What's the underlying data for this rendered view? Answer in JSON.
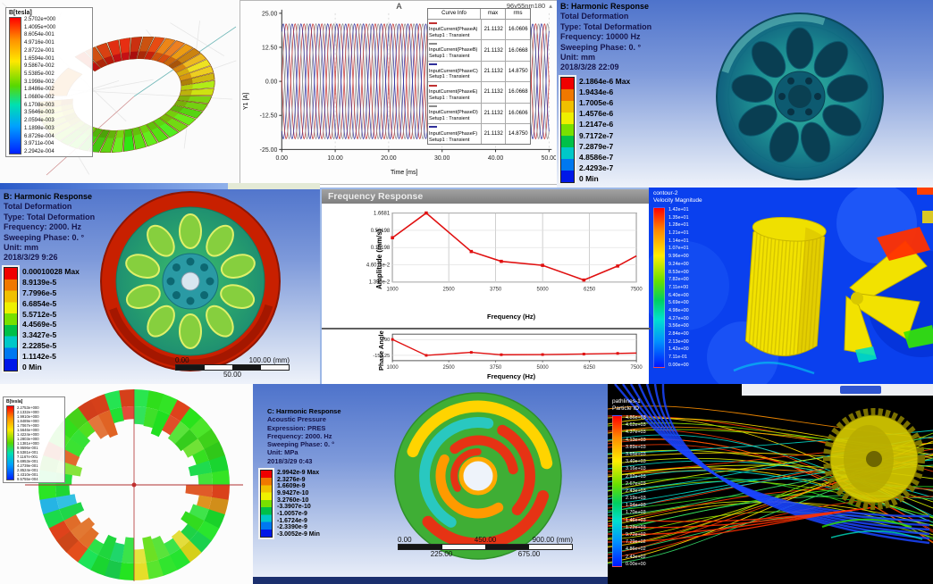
{
  "colors": {
    "ansys_bg_top": "#4e73cb",
    "curve_red": "#c03030",
    "curve_gray": "#8a8a8a",
    "curve_navy": "#30309a",
    "marker_red": "#e01010",
    "fluent_bg_blue": "#0a40ee",
    "gear_yellow": "#f2e200"
  },
  "panels": {
    "maxwell_torus": {
      "legend_title": "B[tesla]",
      "values": [
        "2.5702e+000",
        "1.4095e+000",
        "8.6054e-001",
        "4.9716e-001",
        "2.8722e-001",
        "1.6594e-001",
        "9.5867e-002",
        "5.5385e-002",
        "3.1998e-002",
        "1.8486e-002",
        "1.0680e-002",
        "6.1708e-003",
        "3.5646e-003",
        "2.0594e-003",
        "1.1898e-003",
        "6.8726e-004",
        "3.9711e-004",
        "2.2942e-004"
      ]
    },
    "transient_plot": {
      "window_title": "96v55nm180"
    },
    "harmonic_wheel_10000": {
      "header_lines": [
        "B: Harmonic Response",
        "Total Deformation",
        "Type: Total Deformation",
        "Frequency: 10000 Hz",
        "Sweeping Phase: 0. °",
        "Unit: mm",
        "2018/3/28 22:09"
      ],
      "scale": [
        "2.1864e-6 Max",
        "1.9434e-6",
        "1.7005e-6",
        "1.4576e-6",
        "1.2147e-6",
        "9.7172e-7",
        "7.2879e-7",
        "4.8586e-7",
        "2.4293e-7",
        "0 Min"
      ]
    },
    "harmonic_wheel_2000": {
      "header_lines": [
        "B: Harmonic Response",
        "Total Deformation",
        "Type: Total Deformation",
        "Frequency: 2000. Hz",
        "Sweeping Phase: 0. °",
        "Unit: mm",
        "2018/3/29 9:26"
      ],
      "scale": [
        "0.00010028 Max",
        "8.9139e-5",
        "7.7996e-5",
        "6.6854e-5",
        "5.5712e-5",
        "4.4569e-5",
        "3.3427e-5",
        "2.2285e-5",
        "1.1142e-5",
        "0 Min"
      ],
      "ruler": {
        "top_left": "0.00",
        "top_right": "100.00 (mm)",
        "bottom_center": "50.00"
      }
    },
    "frequency_response": {
      "window_title": "Frequency Response"
    },
    "cfd_velocity": {
      "legend_header_line1": "contour-2",
      "legend_header_line2": "Velocity Magnitude",
      "values": [
        "1.42e+01",
        "1.35e+01",
        "1.28e+01",
        "1.21e+01",
        "1.14e+01",
        "1.07e+01",
        "9.96e+00",
        "9.24e+00",
        "8.53e+00",
        "7.82e+00",
        "7.11e+00",
        "6.40e+00",
        "5.69e+00",
        "4.98e+00",
        "4.27e+00",
        "3.56e+00",
        "2.84e+00",
        "2.13e+00",
        "1.42e+00",
        "7.11e-01",
        "0.00e+00"
      ]
    },
    "maxwell_ring": {
      "legend_title": "B[tesla]",
      "values": [
        "2.2753e+000",
        "2.1332e+000",
        "1.9910e+000",
        "1.8489e+000",
        "1.7067e+000",
        "1.5646e+000",
        "1.4224e+000",
        "1.2803e+000",
        "1.1381e+000",
        "9.9596e-001",
        "8.5381e-001",
        "7.1167e-001",
        "5.6953e-001",
        "4.2739e-001",
        "2.8524e-001",
        "1.4310e-001",
        "9.5755e-004"
      ]
    },
    "acoustic_disk": {
      "header_lines": [
        "C: Harmonic Response",
        "Acoustic Pressure",
        "Expression: PRES",
        "Frequency: 2000. Hz",
        "Sweeping Phase: 0. °",
        "Unit: MPa",
        "2018/3/29 0:43"
      ],
      "scale": [
        "2.9942e-9 Max",
        "2.3276e-9",
        "1.6609e-9",
        "9.9427e-10",
        "3.2760e-10",
        "-3.3907e-10",
        "-1.0057e-9",
        "-1.6724e-9",
        "-2.3390e-9",
        "-3.0052e-9 Min"
      ],
      "ruler": {
        "top": [
          "0.00",
          "450.00",
          "900.00 (mm)"
        ],
        "bottom": [
          "225.00",
          "675.00"
        ]
      }
    },
    "cfd_pathlines": {
      "legend_header_line1": "pathlines-1",
      "legend_header_line2": "Particle ID",
      "values": [
        "4.86e+03",
        "4.62e+03",
        "4.37e+03",
        "4.13e+03",
        "3.89e+03",
        "3.65e+03",
        "3.40e+03",
        "3.16e+03",
        "2.92e+03",
        "2.67e+03",
        "2.43e+03",
        "2.19e+03",
        "1.94e+03",
        "1.70e+03",
        "1.46e+03",
        "1.22e+03",
        "9.72e+02",
        "7.29e+02",
        "4.86e+02",
        "2.43e+02",
        "0.00e+00"
      ]
    }
  },
  "chart_data": [
    {
      "type": "line",
      "title": "A",
      "window_title": "96v55nm180",
      "xlabel": "Time [ms]",
      "ylabel": "Y1 [A]",
      "x_range": [
        0,
        50
      ],
      "y_range": [
        -25,
        25
      ],
      "xticks": [
        "0.00",
        "10.00",
        "20.00",
        "30.00",
        "40.00",
        "50.00"
      ],
      "yticks": [
        "25.00",
        "12.50",
        "0.00",
        "-12.50",
        "-25.00"
      ],
      "waveform": "sine",
      "amplitude": 21.1132,
      "period_ms": 3.333,
      "legend_header": "Curve Info",
      "col_headers": [
        "max",
        "rms"
      ],
      "series": [
        {
          "name": "InputCurrent(PhaseA)",
          "setup": "Setup1 : Transient",
          "color": "#c03030",
          "phase_deg": 0,
          "max": "21.1132",
          "rms": "16.0606"
        },
        {
          "name": "InputCurrent(PhaseB)",
          "setup": "Setup1 : Transient",
          "color": "#8a8a8a",
          "phase_deg": 300,
          "max": "21.1132",
          "rms": "16.0668"
        },
        {
          "name": "InputCurrent(PhaseC)",
          "setup": "Setup1 : Transient",
          "color": "#30309a",
          "phase_deg": 240,
          "max": "21.1132",
          "rms": "14.8750"
        },
        {
          "name": "InputCurrent(PhaseE)",
          "setup": "Setup1 : Transient",
          "color": "#c03030",
          "phase_deg": 180,
          "max": "21.1132",
          "rms": "16.0668"
        },
        {
          "name": "InputCurrent(PhaseD)",
          "setup": "Setup1 : Transient",
          "color": "#8a8a8a",
          "phase_deg": 120,
          "max": "21.1132",
          "rms": "16.0606"
        },
        {
          "name": "InputCurrent(PhaseF)",
          "setup": "Setup1 : Transient",
          "color": "#30309a",
          "phase_deg": 60,
          "max": "21.1132",
          "rms": "14.8750"
        }
      ]
    },
    {
      "type": "line",
      "name": "amplitude-response",
      "ylabel": "Amplitude (mm/s)",
      "xlabel": "Frequency (Hz)",
      "yscale": "log",
      "yticks": [
        "1.6681",
        "0.50198",
        "0.15198",
        "4.6011e-2",
        "1.390e-2"
      ],
      "xticks": [
        "1000",
        "2500",
        "3750",
        "5000",
        "6250",
        "7500"
      ],
      "x": [
        1000,
        1900,
        3100,
        3900,
        5000,
        6100,
        7000,
        7500
      ],
      "y": [
        0.3,
        1.6681,
        0.115,
        0.058,
        0.044,
        0.0158,
        0.042,
        0.085
      ],
      "color": "#e01010"
    },
    {
      "type": "line",
      "name": "phase-response",
      "ylabel": "Phase Angle",
      "xlabel": "Frequency (Hz)",
      "yticks": [
        "90",
        "-150.25"
      ],
      "xticks": [
        "1000",
        "2500",
        "3750",
        "5000",
        "6250",
        "7500"
      ],
      "x": [
        1000,
        1900,
        3100,
        3900,
        5000,
        6100,
        7000,
        7500
      ],
      "y": [
        90,
        -150,
        -105,
        -140,
        -138,
        -130,
        -120,
        -115
      ],
      "color": "#e01010"
    }
  ]
}
